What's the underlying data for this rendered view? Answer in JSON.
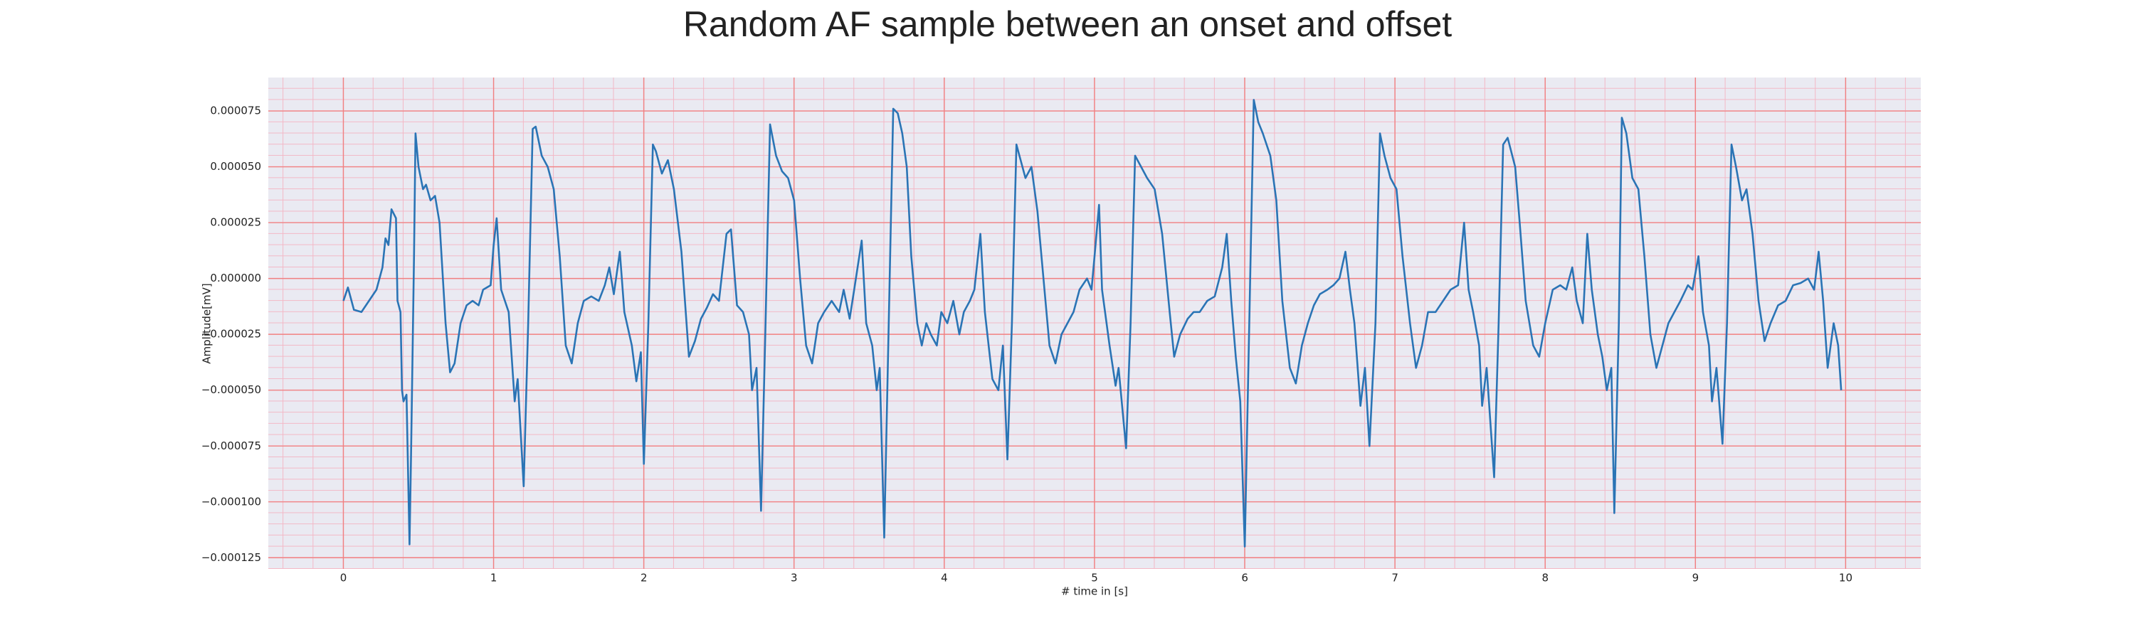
{
  "chart_data": {
    "type": "line",
    "title": "Random AF sample between an onset and offset",
    "x_label": "# time in [s]",
    "y_label": "Amplitude[mV]",
    "color": "#2a74b5",
    "grid": true,
    "minor_grid": true,
    "xlim": [
      -0.5,
      10.5
    ],
    "ylim": [
      -0.00013,
      9e-05
    ],
    "xticks": [
      0,
      1,
      2,
      3,
      4,
      5,
      6,
      7,
      8,
      9,
      10
    ],
    "yticks": [
      {
        "value": 7.5e-05,
        "label": "0.000075"
      },
      {
        "value": 5e-05,
        "label": "0.000050"
      },
      {
        "value": 2.5e-05,
        "label": "0.000025"
      },
      {
        "value": 0,
        "label": "0.000000"
      },
      {
        "value": -2.5e-05,
        "label": "−0.000025"
      },
      {
        "value": -5e-05,
        "label": "−0.000050"
      },
      {
        "value": -7.5e-05,
        "label": "−0.000075"
      },
      {
        "value": -0.0001,
        "label": "−0.000100"
      },
      {
        "value": -0.000125,
        "label": "−0.000125"
      }
    ],
    "x": [
      0.0,
      0.03,
      0.07,
      0.12,
      0.17,
      0.22,
      0.26,
      0.28,
      0.3,
      0.32,
      0.35,
      0.36,
      0.38,
      0.39,
      0.4,
      0.42,
      0.44,
      0.45,
      0.47,
      0.48,
      0.5,
      0.53,
      0.55,
      0.58,
      0.61,
      0.64,
      0.68,
      0.71,
      0.74,
      0.78,
      0.82,
      0.86,
      0.9,
      0.93,
      0.98,
      1.0,
      1.02,
      1.05,
      1.1,
      1.14,
      1.16,
      1.2,
      1.23,
      1.26,
      1.28,
      1.32,
      1.36,
      1.4,
      1.44,
      1.48,
      1.52,
      1.56,
      1.6,
      1.65,
      1.7,
      1.74,
      1.77,
      1.8,
      1.84,
      1.87,
      1.92,
      1.95,
      1.98,
      2.0,
      2.03,
      2.06,
      2.08,
      2.12,
      2.16,
      2.2,
      2.25,
      2.3,
      2.34,
      2.38,
      2.42,
      2.46,
      2.5,
      2.55,
      2.58,
      2.62,
      2.66,
      2.7,
      2.72,
      2.75,
      2.78,
      2.81,
      2.84,
      2.88,
      2.92,
      2.96,
      3.0,
      3.04,
      3.08,
      3.12,
      3.16,
      3.2,
      3.25,
      3.3,
      3.33,
      3.37,
      3.4,
      3.45,
      3.48,
      3.52,
      3.55,
      3.57,
      3.6,
      3.63,
      3.66,
      3.69,
      3.72,
      3.75,
      3.78,
      3.82,
      3.85,
      3.88,
      3.91,
      3.95,
      3.98,
      4.02,
      4.06,
      4.1,
      4.13,
      4.17,
      4.2,
      4.24,
      4.27,
      4.32,
      4.36,
      4.39,
      4.42,
      4.45,
      4.48,
      4.5,
      4.54,
      4.58,
      4.62,
      4.66,
      4.7,
      4.74,
      4.78,
      4.82,
      4.86,
      4.9,
      4.95,
      4.98,
      5.0,
      5.03,
      5.05,
      5.1,
      5.14,
      5.16,
      5.21,
      5.24,
      5.27,
      5.31,
      5.35,
      5.4,
      5.45,
      5.5,
      5.53,
      5.57,
      5.62,
      5.66,
      5.7,
      5.75,
      5.8,
      5.85,
      5.88,
      5.91,
      5.94,
      5.97,
      6.0,
      6.03,
      6.06,
      6.09,
      6.12,
      6.17,
      6.21,
      6.25,
      6.3,
      6.34,
      6.38,
      6.42,
      6.46,
      6.5,
      6.55,
      6.59,
      6.63,
      6.67,
      6.7,
      6.73,
      6.77,
      6.8,
      6.83,
      6.87,
      6.9,
      6.93,
      6.97,
      7.01,
      7.05,
      7.1,
      7.14,
      7.18,
      7.22,
      7.27,
      7.32,
      7.37,
      7.42,
      7.46,
      7.49,
      7.52,
      7.56,
      7.58,
      7.61,
      7.66,
      7.69,
      7.72,
      7.75,
      7.8,
      7.83,
      7.87,
      7.92,
      7.96,
      8.0,
      8.05,
      8.1,
      8.14,
      8.18,
      8.21,
      8.25,
      8.28,
      8.31,
      8.35,
      8.38,
      8.41,
      8.44,
      8.46,
      8.49,
      8.51,
      8.54,
      8.58,
      8.62,
      8.66,
      8.7,
      8.74,
      8.78,
      8.82,
      8.86,
      8.9,
      8.95,
      8.98,
      9.02,
      9.05,
      9.09,
      9.11,
      9.14,
      9.18,
      9.21,
      9.24,
      9.27,
      9.31,
      9.34,
      9.38,
      9.42,
      9.46,
      9.5,
      9.55,
      9.6,
      9.65,
      9.7,
      9.75,
      9.79,
      9.82,
      9.85,
      9.88,
      9.92,
      9.95,
      9.97
    ],
    "values": [
      -1e-05,
      -4e-06,
      -1.4e-05,
      -1.5e-05,
      -1e-05,
      -5e-06,
      5e-06,
      1.8e-05,
      1.5e-05,
      3.1e-05,
      2.7e-05,
      -1e-05,
      -1.5e-05,
      -5e-05,
      -5.5e-05,
      -5.2e-05,
      -0.000119,
      -8e-05,
      1e-05,
      6.5e-05,
      5e-05,
      4e-05,
      4.2e-05,
      3.5e-05,
      3.7e-05,
      2.5e-05,
      -2e-05,
      -4.2e-05,
      -3.8e-05,
      -2e-05,
      -1.2e-05,
      -1e-05,
      -1.2e-05,
      -5e-06,
      -3e-06,
      1.5e-05,
      2.7e-05,
      -5e-06,
      -1.5e-05,
      -5.5e-05,
      -4.5e-05,
      -9.3e-05,
      -2e-05,
      6.7e-05,
      6.8e-05,
      5.5e-05,
      5e-05,
      4e-05,
      1e-05,
      -3e-05,
      -3.8e-05,
      -2e-05,
      -1e-05,
      -8e-06,
      -1e-05,
      -3e-06,
      5e-06,
      -7e-06,
      1.2e-05,
      -1.5e-05,
      -3e-05,
      -4.6e-05,
      -3.3e-05,
      -8.3e-05,
      -2e-05,
      6e-05,
      5.7e-05,
      4.7e-05,
      5.3e-05,
      4e-05,
      1.2e-05,
      -3.5e-05,
      -2.8e-05,
      -1.8e-05,
      -1.3e-05,
      -7e-06,
      -1e-05,
      2e-05,
      2.2e-05,
      -1.2e-05,
      -1.5e-05,
      -2.5e-05,
      -5e-05,
      -4e-05,
      -0.000104,
      -2e-05,
      6.9e-05,
      5.5e-05,
      4.8e-05,
      4.5e-05,
      3.5e-05,
      0,
      -3e-05,
      -3.8e-05,
      -2e-05,
      -1.5e-05,
      -1e-05,
      -1.5e-05,
      -5e-06,
      -1.8e-05,
      -5e-06,
      1.7e-05,
      -2e-05,
      -3e-05,
      -5e-05,
      -4e-05,
      -0.000116,
      -2e-05,
      7.6e-05,
      7.4e-05,
      6.5e-05,
      5e-05,
      1e-05,
      -2e-05,
      -3e-05,
      -2e-05,
      -2.5e-05,
      -3e-05,
      -1.5e-05,
      -2e-05,
      -1e-05,
      -2.5e-05,
      -1.5e-05,
      -1e-05,
      -5e-06,
      2e-05,
      -1.5e-05,
      -4.5e-05,
      -5e-05,
      -3e-05,
      -8.1e-05,
      -2e-05,
      6e-05,
      5.5e-05,
      4.5e-05,
      5e-05,
      3e-05,
      0,
      -3e-05,
      -3.8e-05,
      -2.5e-05,
      -2e-05,
      -1.5e-05,
      -5e-06,
      0,
      -5e-06,
      1e-05,
      3.3e-05,
      -5e-06,
      -3e-05,
      -4.8e-05,
      -4e-05,
      -7.6e-05,
      -2e-05,
      5.5e-05,
      5e-05,
      4.5e-05,
      4e-05,
      2e-05,
      -1.5e-05,
      -3.5e-05,
      -2.5e-05,
      -1.8e-05,
      -1.5e-05,
      -1.5e-05,
      -1e-05,
      -8e-06,
      5e-06,
      2e-05,
      -1e-05,
      -3.5e-05,
      -5.5e-05,
      -0.00012,
      -2e-05,
      8e-05,
      7e-05,
      6.5e-05,
      5.5e-05,
      3.5e-05,
      -1e-05,
      -4e-05,
      -4.7e-05,
      -3e-05,
      -2e-05,
      -1.2e-05,
      -7e-06,
      -5e-06,
      -3e-06,
      0,
      1.2e-05,
      -5e-06,
      -2e-05,
      -5.7e-05,
      -4e-05,
      -7.5e-05,
      -2e-05,
      6.5e-05,
      5.5e-05,
      4.5e-05,
      4e-05,
      1e-05,
      -2e-05,
      -4e-05,
      -3e-05,
      -1.5e-05,
      -1.5e-05,
      -1e-05,
      -5e-06,
      -3e-06,
      2.5e-05,
      -5e-06,
      -1.5e-05,
      -3e-05,
      -5.7e-05,
      -4e-05,
      -8.9e-05,
      -2e-05,
      6e-05,
      6.3e-05,
      5e-05,
      2.5e-05,
      -1e-05,
      -3e-05,
      -3.5e-05,
      -2e-05,
      -5e-06,
      -3e-06,
      -5e-06,
      5e-06,
      -1e-05,
      -2e-05,
      2e-05,
      -5e-06,
      -2.5e-05,
      -3.5e-05,
      -5e-05,
      -4e-05,
      -0.000105,
      -2e-05,
      7.2e-05,
      6.5e-05,
      4.5e-05,
      4e-05,
      1e-05,
      -2.5e-05,
      -4e-05,
      -3e-05,
      -2e-05,
      -1.5e-05,
      -1e-05,
      -3e-06,
      -5e-06,
      1e-05,
      -1.5e-05,
      -3e-05,
      -5.5e-05,
      -4e-05,
      -7.4e-05,
      -2e-05,
      6e-05,
      5e-05,
      3.5e-05,
      4e-05,
      2e-05,
      -1e-05,
      -2.8e-05,
      -2e-05,
      -1.2e-05,
      -1e-05,
      -3e-06,
      -2e-06,
      0,
      -5e-06,
      1.2e-05,
      -1e-05,
      -4e-05,
      -2e-05,
      -3e-05,
      -5e-05
    ]
  }
}
